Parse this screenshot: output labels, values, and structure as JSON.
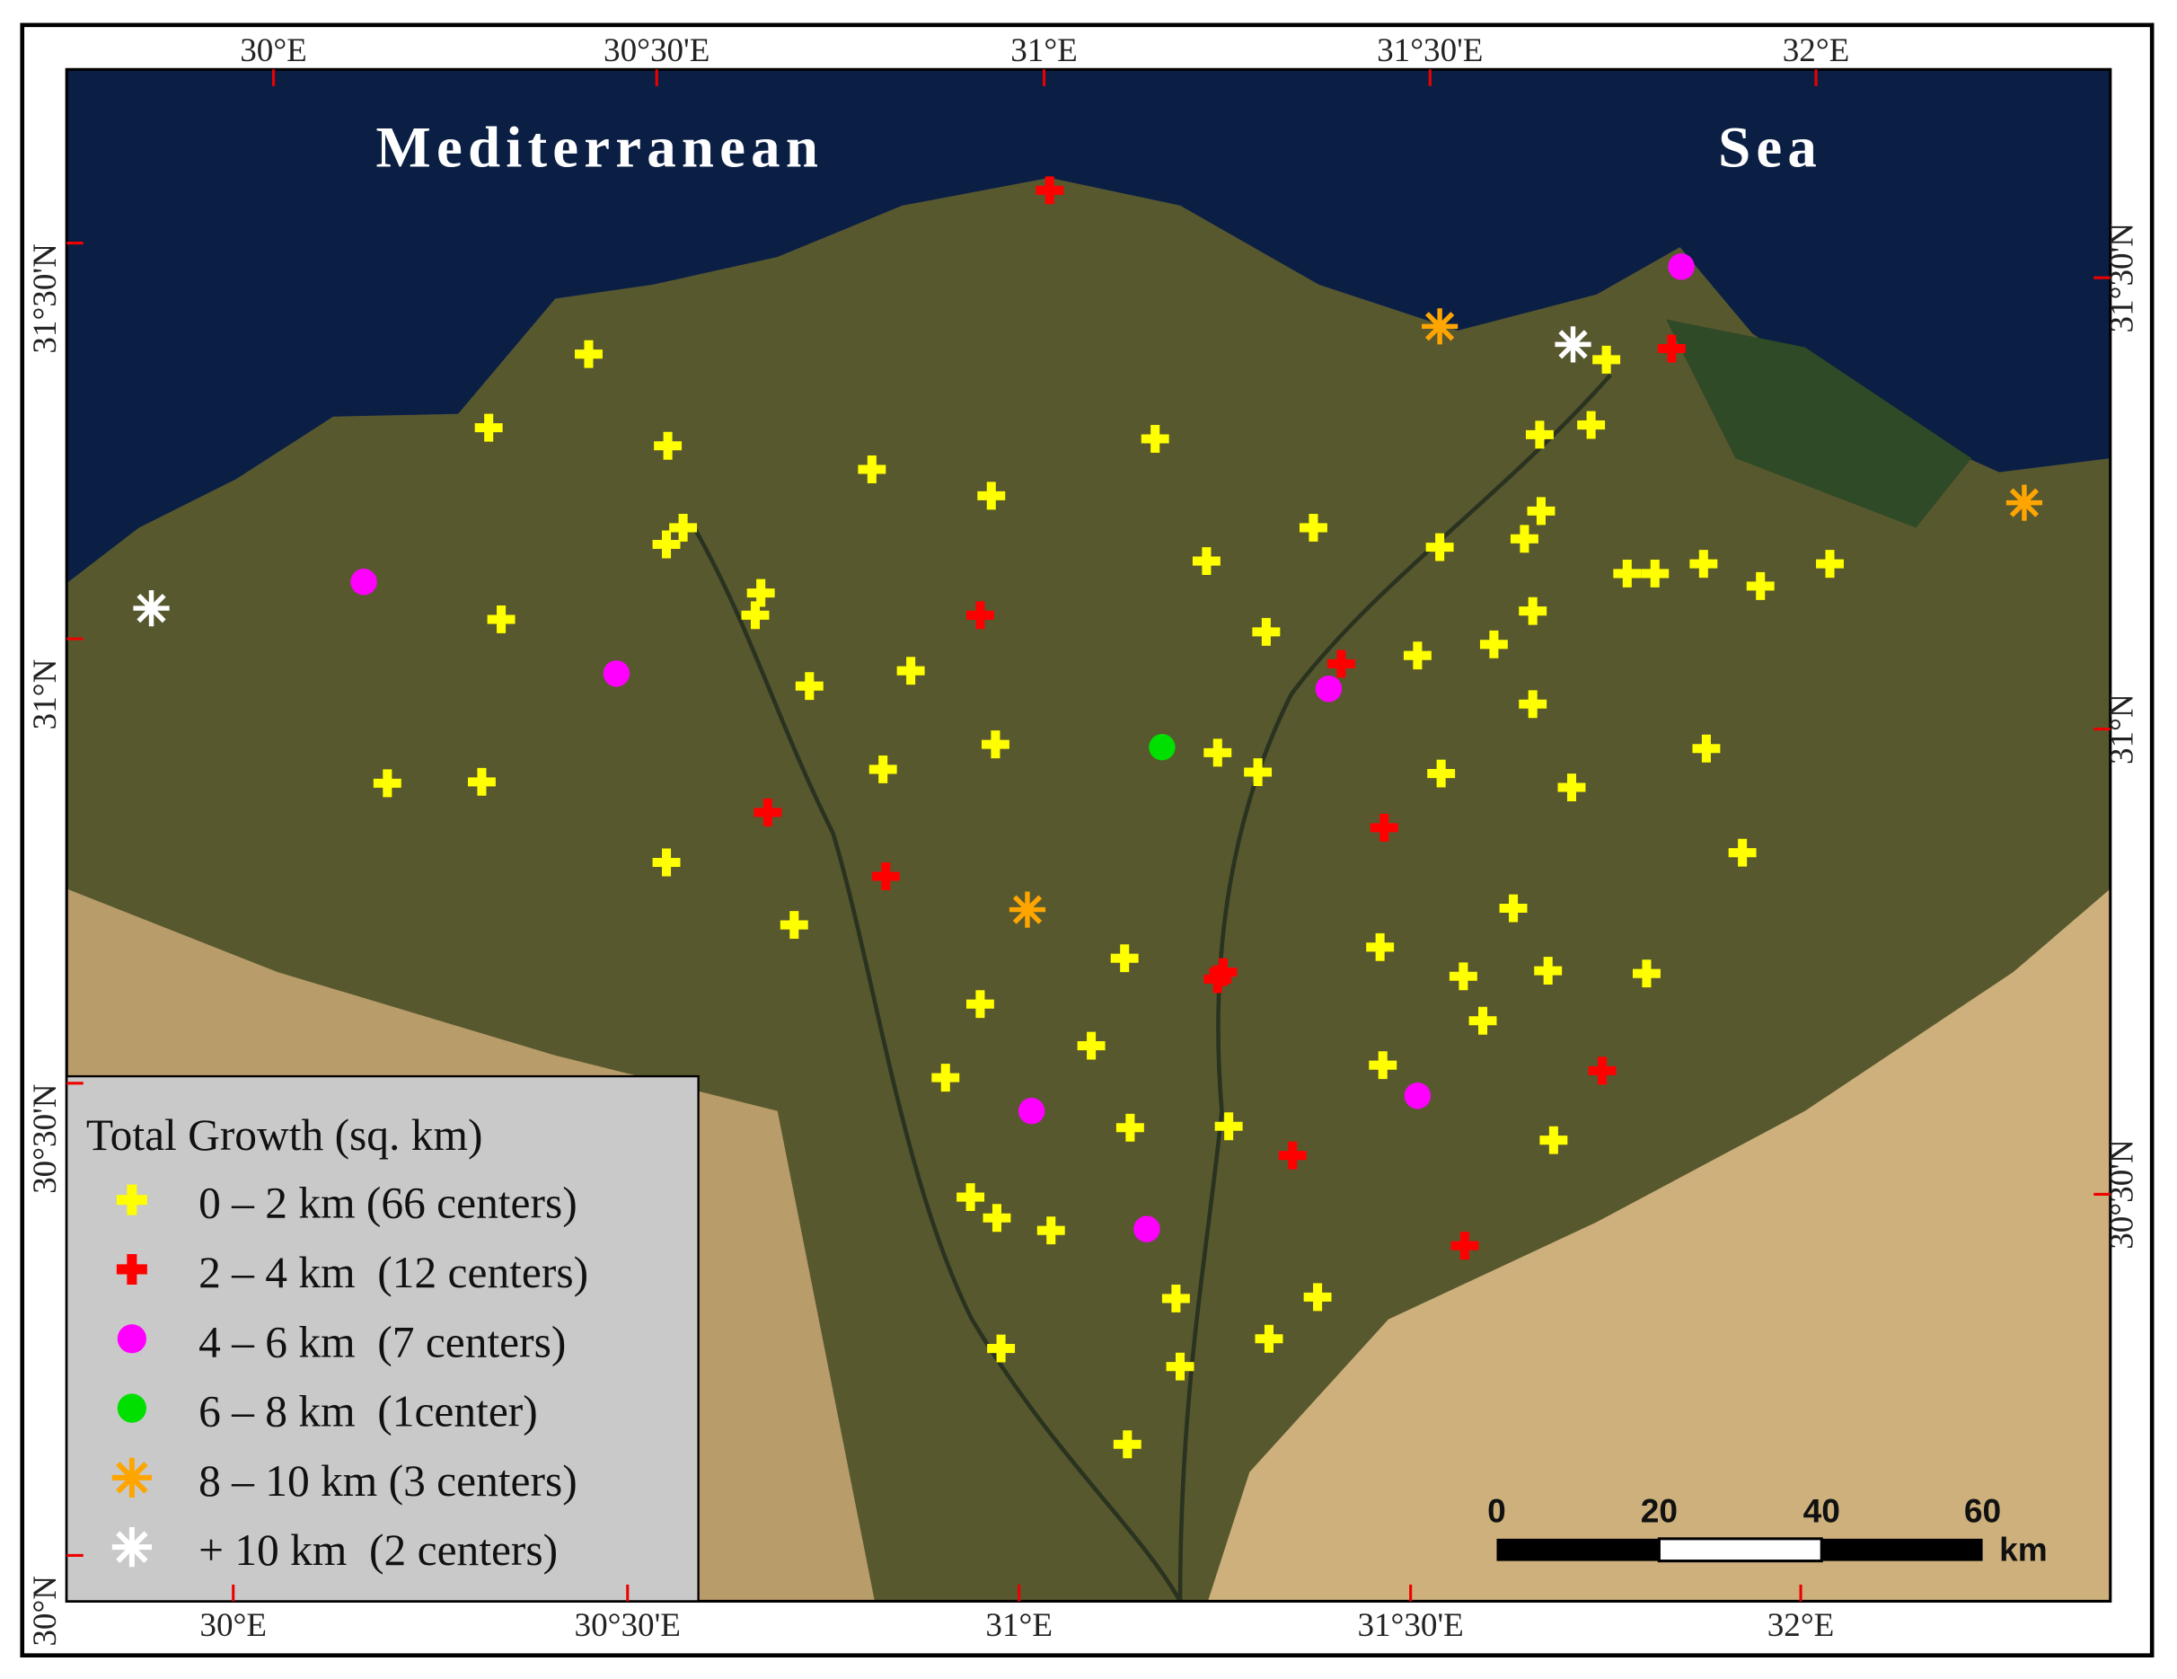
{
  "map": {
    "sea_labels": [
      "Mediterranean",
      "Sea"
    ],
    "top_ticks": [
      "30°E",
      "30°30'E",
      "31°E",
      "31°30'E",
      "32°E"
    ],
    "bottom_ticks": [
      "30°E",
      "30°30'E",
      "31°E",
      "31°30'E",
      "32°E"
    ],
    "left_ticks": [
      "31°30'N",
      "31°N",
      "30°30'N",
      "30°N"
    ],
    "right_ticks": [
      "31°30'N",
      "31°N",
      "30°30'N"
    ],
    "legend": {
      "title": "Total Growth (sq. km)",
      "entries": [
        {
          "label": "0 – 2 km (66 centers)",
          "color": "#ffff00",
          "shape": "plus"
        },
        {
          "label": "2 – 4 km  (12 centers)",
          "color": "#ff0000",
          "shape": "plus"
        },
        {
          "label": "4 – 6 km  (7 centers)",
          "color": "#ff00ff",
          "shape": "circle"
        },
        {
          "label": "6 – 8 km  (1center)",
          "color": "#00e000",
          "shape": "circle"
        },
        {
          "label": "8 – 10 km (3 centers)",
          "color": "#ffa500",
          "shape": "asterisk"
        },
        {
          "label": "+ 10 km  (2 centers)",
          "color": "#ffffff",
          "shape": "asterisk"
        }
      ]
    },
    "scale_bar": {
      "labels": [
        "0",
        "20",
        "40",
        "60"
      ],
      "unit": "km"
    }
  }
}
